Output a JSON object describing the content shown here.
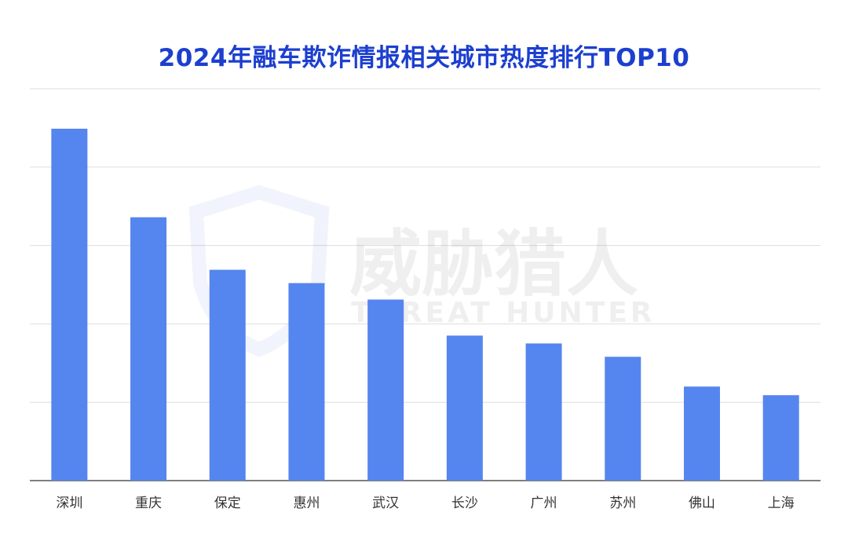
{
  "chart_data": {
    "type": "bar",
    "title": "2024年融车欺诈情报相关城市热度排行TOP10",
    "categories": [
      "深圳",
      "重庆",
      "保定",
      "惠州",
      "武汉",
      "长沙",
      "广州",
      "苏州",
      "佛山",
      "上海"
    ],
    "values": [
      4.49,
      3.36,
      2.69,
      2.52,
      2.31,
      1.85,
      1.75,
      1.58,
      1.2,
      1.09
    ],
    "xlabel": "",
    "ylabel": "",
    "ylim": [
      0,
      5
    ],
    "y_tick_labels_shown": false,
    "grid": true,
    "legend": "none",
    "colors": {
      "bar": "#5585ee",
      "title": "#1c3fcf",
      "grid": "#dddddd",
      "axis": "#555555"
    }
  },
  "watermark": {
    "cn": "威胁猎人",
    "en": "THREAT HUNTER",
    "logo": "TH"
  }
}
